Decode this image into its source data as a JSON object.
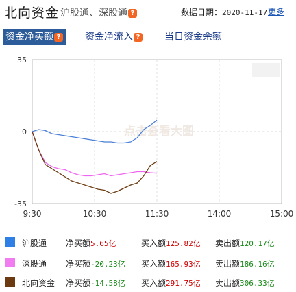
{
  "header": {
    "title": "北向资金",
    "subtitle": "沪股通、深股通",
    "date_label": "数据日期：",
    "date_value": "2020-11-17",
    "more_label": "更多",
    "help_glyph": "?"
  },
  "tabs": [
    {
      "label": "资金净买额",
      "active": true
    },
    {
      "label": "资金净流入",
      "active": false
    },
    {
      "label": "当日资金余额",
      "active": false
    }
  ],
  "chart_data": {
    "type": "line",
    "x_ticks": [
      "9:30",
      "10:30",
      "11:30",
      "14:00",
      "15:00"
    ],
    "y_ticks": [
      "35",
      "0",
      "-35"
    ],
    "ylim": [
      -35,
      35
    ],
    "watermark": "点击查看大图",
    "grid": true,
    "series": [
      {
        "name": "沪股通",
        "color": "#4a7fd8",
        "values": [
          0,
          1,
          0.5,
          -1,
          -1.5,
          -2,
          -2.5,
          -3,
          -3.5,
          -4,
          -4.5,
          -5,
          -5,
          -5.5,
          -5.5,
          -5,
          -3,
          1,
          3,
          5.65
        ]
      },
      {
        "name": "深股通",
        "color": "#ee66ee",
        "values": [
          0,
          -9,
          -15,
          -17,
          -18,
          -18.5,
          -20,
          -21,
          -21.5,
          -21.5,
          -21,
          -20.5,
          -21.5,
          -21,
          -20.5,
          -20,
          -19.5,
          -19.5,
          -20,
          -20.23
        ]
      },
      {
        "name": "北向资金",
        "color": "#6b3a0f",
        "values": [
          0,
          -9,
          -16,
          -18,
          -20,
          -22,
          -24,
          -25,
          -26,
          -27,
          -28,
          -28.5,
          -30,
          -29,
          -27.5,
          -26,
          -25,
          -21.5,
          -16.5,
          -14.58
        ]
      }
    ]
  },
  "legend": [
    {
      "name": "沪股通",
      "color": "#2e80e6",
      "net_label": "净买额",
      "net_value": "5.65亿",
      "net_color": "#d00000",
      "buy_label": "买入额",
      "buy_value": "125.82亿",
      "sell_label": "卖出额",
      "sell_value": "120.17亿"
    },
    {
      "name": "深股通",
      "color": "#f07cf0",
      "net_label": "净买额",
      "net_value": "-20.23亿",
      "net_color": "#1a8a1a",
      "buy_label": "买入额",
      "buy_value": "165.93亿",
      "sell_label": "卖出额",
      "sell_value": "186.16亿"
    },
    {
      "name": "北向资金",
      "color": "#6b3a10",
      "net_label": "净买额",
      "net_value": "-14.58亿",
      "net_color": "#1a8a1a",
      "buy_label": "买入额",
      "buy_value": "291.75亿",
      "sell_label": "卖出额",
      "sell_value": "306.33亿"
    }
  ]
}
